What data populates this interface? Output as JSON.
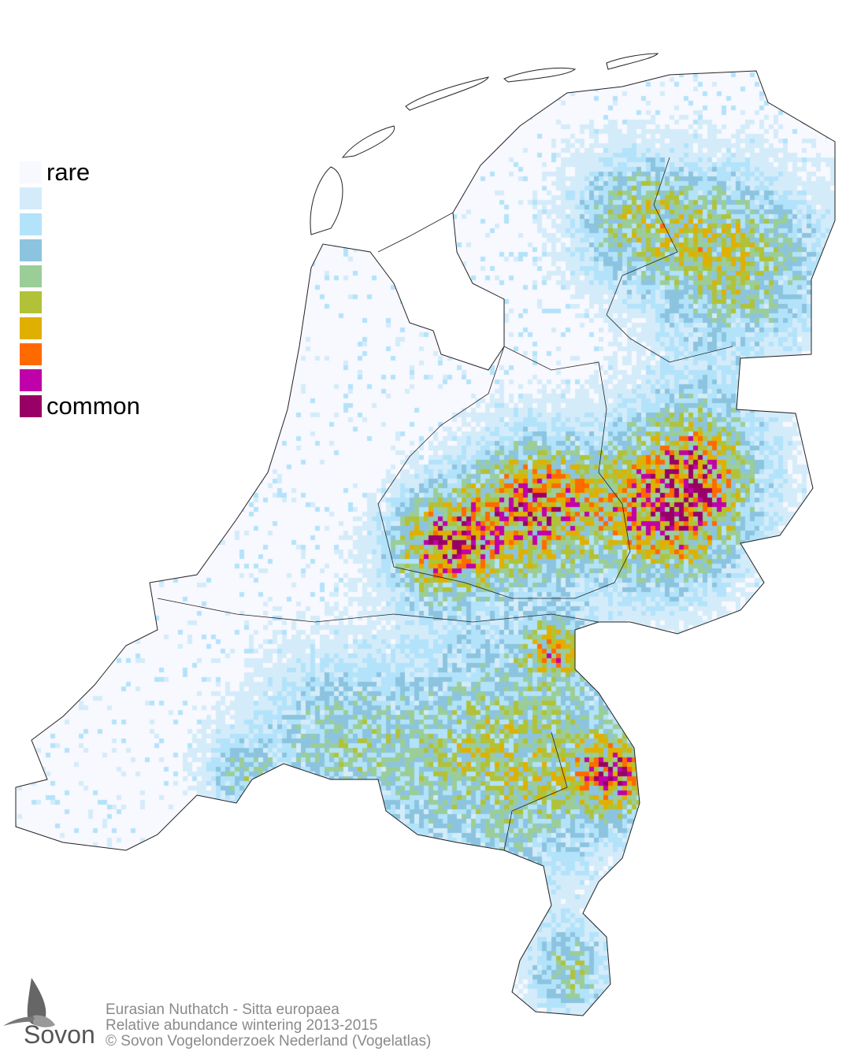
{
  "legend": {
    "rare_label": "rare",
    "common_label": "common",
    "colors": [
      "#f8f8ff",
      "#d4ecfa",
      "#b3e3fa",
      "#8cc4e0",
      "#9bcd98",
      "#b1c238",
      "#e0b000",
      "#ff6a00",
      "#c000a8",
      "#990066"
    ]
  },
  "caption": {
    "species": "Eurasian Nuthatch - Sitta europaea",
    "subtitle": "Relative abundance wintering 2013-2015",
    "copyright": "© Sovon Vogelonderzoek Nederland (Vogelatlas)"
  },
  "logo": {
    "text": "Sovon"
  }
}
